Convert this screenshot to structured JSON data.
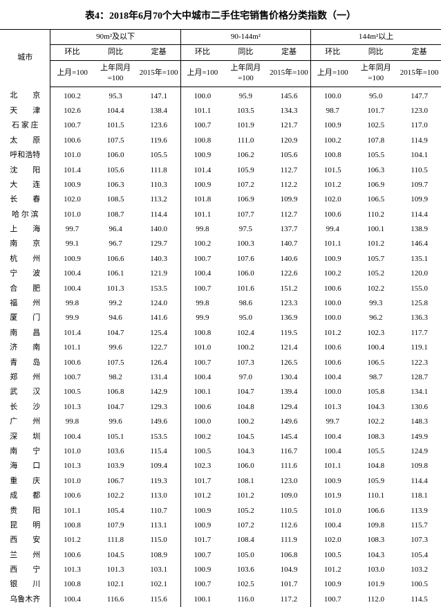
{
  "title": "表4：2018年6月70个大中城市二手住宅销售价格分类指数（一）",
  "header": {
    "city": "城市",
    "groups": [
      "90m²及以下",
      "90-144m²",
      "144m²以上"
    ],
    "sub": [
      "环比",
      "同比",
      "定基"
    ],
    "base": [
      "上月=100",
      "上年同月=100",
      "2015年=100"
    ]
  },
  "rows": [
    {
      "city": "北　　京",
      "v": [
        "100.2",
        "95.3",
        "147.1",
        "100.0",
        "95.9",
        "145.6",
        "100.0",
        "95.0",
        "147.7"
      ]
    },
    {
      "city": "天　　津",
      "v": [
        "102.6",
        "104.4",
        "138.4",
        "101.1",
        "103.5",
        "134.3",
        "98.7",
        "101.7",
        "123.0"
      ]
    },
    {
      "city": "石 家 庄",
      "v": [
        "100.7",
        "101.5",
        "123.6",
        "100.7",
        "101.9",
        "121.7",
        "100.9",
        "102.5",
        "117.0"
      ]
    },
    {
      "city": "太　　原",
      "v": [
        "100.6",
        "107.5",
        "119.6",
        "100.8",
        "111.0",
        "120.9",
        "100.2",
        "107.8",
        "114.9"
      ]
    },
    {
      "city": "呼和浩特",
      "v": [
        "101.0",
        "106.0",
        "105.5",
        "100.9",
        "106.2",
        "105.6",
        "100.8",
        "105.5",
        "104.1"
      ]
    },
    {
      "city": "沈　　阳",
      "v": [
        "101.4",
        "105.6",
        "111.8",
        "101.4",
        "105.9",
        "112.7",
        "101.5",
        "106.3",
        "110.5"
      ]
    },
    {
      "city": "大　　连",
      "v": [
        "100.9",
        "106.3",
        "110.3",
        "100.9",
        "107.2",
        "112.2",
        "101.2",
        "106.9",
        "109.7"
      ]
    },
    {
      "city": "长　　春",
      "v": [
        "102.0",
        "108.5",
        "113.2",
        "101.8",
        "106.9",
        "109.9",
        "102.0",
        "106.5",
        "109.9"
      ]
    },
    {
      "city": "哈 尔 滨",
      "v": [
        "101.0",
        "108.7",
        "114.4",
        "101.1",
        "107.7",
        "112.7",
        "100.6",
        "110.2",
        "114.4"
      ]
    },
    {
      "city": "上　　海",
      "v": [
        "99.7",
        "96.4",
        "140.0",
        "99.8",
        "97.5",
        "137.7",
        "99.4",
        "100.1",
        "138.9"
      ]
    },
    {
      "city": "南　　京",
      "v": [
        "99.1",
        "96.7",
        "129.7",
        "100.2",
        "100.3",
        "140.7",
        "101.1",
        "101.2",
        "146.4"
      ]
    },
    {
      "city": "杭　　州",
      "v": [
        "100.9",
        "106.6",
        "140.3",
        "100.7",
        "107.6",
        "140.6",
        "100.9",
        "105.7",
        "135.1"
      ]
    },
    {
      "city": "宁　　波",
      "v": [
        "100.4",
        "106.1",
        "121.9",
        "100.4",
        "106.0",
        "122.6",
        "100.2",
        "105.2",
        "120.0"
      ]
    },
    {
      "city": "合　　肥",
      "v": [
        "100.4",
        "101.3",
        "153.5",
        "100.7",
        "101.6",
        "151.2",
        "100.6",
        "102.2",
        "155.0"
      ]
    },
    {
      "city": "福　　州",
      "v": [
        "99.8",
        "99.2",
        "124.0",
        "99.8",
        "98.6",
        "123.3",
        "100.0",
        "99.3",
        "125.8"
      ]
    },
    {
      "city": "厦　　门",
      "v": [
        "99.9",
        "94.6",
        "141.6",
        "99.9",
        "95.0",
        "136.9",
        "100.0",
        "96.2",
        "136.3"
      ]
    },
    {
      "city": "南　　昌",
      "v": [
        "101.4",
        "104.7",
        "125.4",
        "100.8",
        "102.4",
        "119.5",
        "101.2",
        "102.3",
        "117.7"
      ]
    },
    {
      "city": "济　　南",
      "v": [
        "101.1",
        "99.6",
        "122.7",
        "101.0",
        "100.2",
        "121.4",
        "100.6",
        "100.4",
        "119.1"
      ]
    },
    {
      "city": "青　　岛",
      "v": [
        "100.6",
        "107.5",
        "126.4",
        "100.7",
        "107.3",
        "126.5",
        "100.6",
        "106.5",
        "122.3"
      ]
    },
    {
      "city": "郑　　州",
      "v": [
        "100.7",
        "98.2",
        "131.4",
        "100.4",
        "97.0",
        "130.4",
        "100.4",
        "98.7",
        "128.7"
      ]
    },
    {
      "city": "武　　汉",
      "v": [
        "100.5",
        "106.8",
        "142.9",
        "100.1",
        "104.7",
        "139.4",
        "100.0",
        "105.8",
        "134.1"
      ]
    },
    {
      "city": "长　　沙",
      "v": [
        "101.3",
        "104.7",
        "129.3",
        "100.6",
        "104.8",
        "129.4",
        "101.3",
        "104.3",
        "130.6"
      ]
    },
    {
      "city": "广　　州",
      "v": [
        "99.8",
        "99.6",
        "149.6",
        "100.0",
        "100.2",
        "149.6",
        "99.7",
        "102.2",
        "148.3"
      ]
    },
    {
      "city": "深　　圳",
      "v": [
        "100.4",
        "105.1",
        "153.5",
        "100.2",
        "104.5",
        "145.4",
        "100.4",
        "108.3",
        "149.9"
      ]
    },
    {
      "city": "南　　宁",
      "v": [
        "101.0",
        "103.6",
        "115.4",
        "100.5",
        "104.3",
        "116.7",
        "100.4",
        "105.5",
        "124.9"
      ]
    },
    {
      "city": "海　　口",
      "v": [
        "101.3",
        "103.9",
        "109.4",
        "102.3",
        "106.0",
        "111.6",
        "101.1",
        "104.8",
        "109.8"
      ]
    },
    {
      "city": "重　　庆",
      "v": [
        "101.0",
        "106.7",
        "119.3",
        "101.7",
        "108.1",
        "123.0",
        "100.9",
        "105.9",
        "114.4"
      ]
    },
    {
      "city": "成　　都",
      "v": [
        "100.6",
        "102.2",
        "113.0",
        "101.2",
        "101.2",
        "109.0",
        "101.9",
        "110.1",
        "118.1"
      ]
    },
    {
      "city": "贵　　阳",
      "v": [
        "101.1",
        "105.4",
        "110.7",
        "100.9",
        "105.2",
        "110.5",
        "101.0",
        "106.6",
        "113.9"
      ]
    },
    {
      "city": "昆　　明",
      "v": [
        "100.8",
        "107.9",
        "113.1",
        "100.9",
        "107.2",
        "112.6",
        "100.4",
        "109.8",
        "115.7"
      ]
    },
    {
      "city": "西　　安",
      "v": [
        "101.2",
        "111.8",
        "115.0",
        "101.7",
        "108.4",
        "111.9",
        "102.0",
        "108.3",
        "107.3"
      ]
    },
    {
      "city": "兰　　州",
      "v": [
        "100.6",
        "104.5",
        "108.9",
        "100.7",
        "105.0",
        "106.8",
        "100.5",
        "104.3",
        "105.4"
      ]
    },
    {
      "city": "西　　宁",
      "v": [
        "101.3",
        "101.3",
        "103.1",
        "100.9",
        "103.6",
        "104.9",
        "101.2",
        "103.0",
        "103.2"
      ]
    },
    {
      "city": "银　　川",
      "v": [
        "100.8",
        "102.1",
        "102.1",
        "100.7",
        "102.5",
        "101.7",
        "100.9",
        "101.9",
        "100.5"
      ]
    },
    {
      "city": "乌鲁木齐",
      "v": [
        "100.4",
        "116.6",
        "115.6",
        "100.1",
        "116.0",
        "117.2",
        "100.7",
        "112.0",
        "114.5"
      ]
    }
  ]
}
